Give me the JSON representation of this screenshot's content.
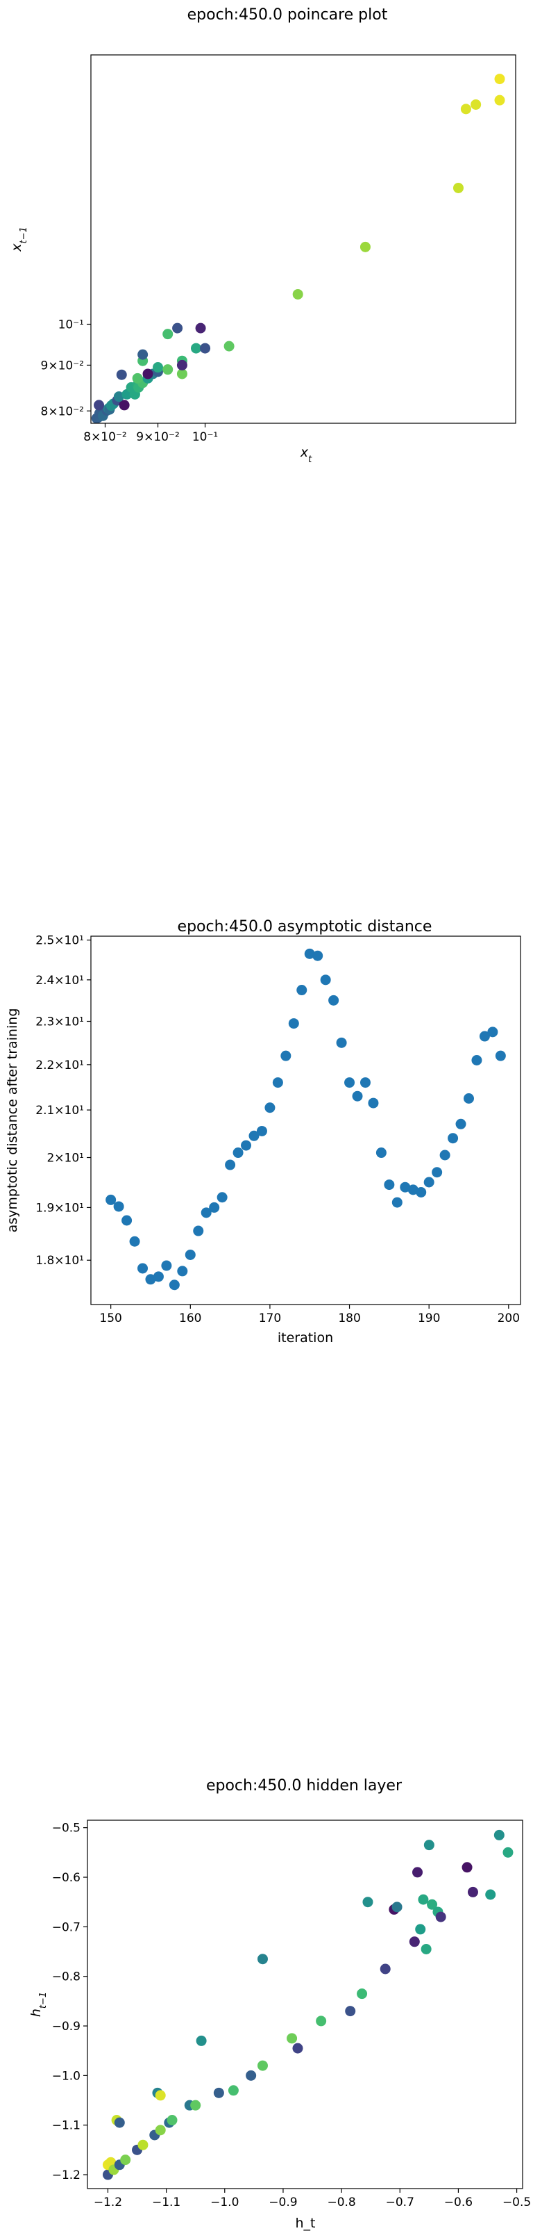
{
  "chart_data": [
    {
      "type": "scatter",
      "title": "epoch:450.0 poincare plot",
      "xlabel": "x_t",
      "ylabel": "x_{t-1}",
      "xscale": "log",
      "yscale": "log",
      "xlim": [
        0.0775,
        0.2
      ],
      "ylim": [
        0.0775,
        0.2
      ],
      "x_ticks": [
        {
          "value": 0.08,
          "label": "8×10⁻²"
        },
        {
          "value": 0.09,
          "label": "9×10⁻²"
        },
        {
          "value": 0.1,
          "label": "10⁻¹"
        }
      ],
      "y_ticks": [
        {
          "value": 0.08,
          "label": "8×10⁻²"
        },
        {
          "value": 0.09,
          "label": "9×10⁻²"
        },
        {
          "value": 0.1,
          "label": "10⁻¹"
        }
      ],
      "colormap": "viridis",
      "points": [
        {
          "x": 0.0785,
          "y": 0.0785,
          "c": 0.3
        },
        {
          "x": 0.0787,
          "y": 0.0786,
          "c": 0.3
        },
        {
          "x": 0.0789,
          "y": 0.0788,
          "c": 0.3
        },
        {
          "x": 0.0791,
          "y": 0.079,
          "c": 0.32
        },
        {
          "x": 0.0793,
          "y": 0.0792,
          "c": 0.3
        },
        {
          "x": 0.0795,
          "y": 0.0794,
          "c": 0.35
        },
        {
          "x": 0.0798,
          "y": 0.0796,
          "c": 0.3
        },
        {
          "x": 0.08,
          "y": 0.0799,
          "c": 0.4
        },
        {
          "x": 0.079,
          "y": 0.0795,
          "c": 0.3
        },
        {
          "x": 0.0796,
          "y": 0.079,
          "c": 0.35
        },
        {
          "x": 0.0803,
          "y": 0.0801,
          "c": 0.3
        },
        {
          "x": 0.0806,
          "y": 0.0805,
          "c": 0.45
        },
        {
          "x": 0.0808,
          "y": 0.0803,
          "c": 0.35
        },
        {
          "x": 0.0811,
          "y": 0.0811,
          "c": 0.5
        },
        {
          "x": 0.0815,
          "y": 0.0815,
          "c": 0.5
        },
        {
          "x": 0.0789,
          "y": 0.0812,
          "c": 0.2
        },
        {
          "x": 0.0822,
          "y": 0.0822,
          "c": 0.25
        },
        {
          "x": 0.0835,
          "y": 0.0812,
          "c": 0.05
        },
        {
          "x": 0.0825,
          "y": 0.083,
          "c": 0.45
        },
        {
          "x": 0.084,
          "y": 0.0835,
          "c": 0.55
        },
        {
          "x": 0.0855,
          "y": 0.0835,
          "c": 0.6
        },
        {
          "x": 0.0848,
          "y": 0.085,
          "c": 0.6
        },
        {
          "x": 0.086,
          "y": 0.0855,
          "c": 0.62
        },
        {
          "x": 0.0862,
          "y": 0.085,
          "c": 0.65
        },
        {
          "x": 0.087,
          "y": 0.086,
          "c": 0.7
        },
        {
          "x": 0.088,
          "y": 0.087,
          "c": 0.55
        },
        {
          "x": 0.089,
          "y": 0.088,
          "c": 0.45
        },
        {
          "x": 0.09,
          "y": 0.0885,
          "c": 0.3
        },
        {
          "x": 0.09,
          "y": 0.0895,
          "c": 0.6
        },
        {
          "x": 0.092,
          "y": 0.089,
          "c": 0.75
        },
        {
          "x": 0.088,
          "y": 0.088,
          "c": 0.05
        },
        {
          "x": 0.083,
          "y": 0.0878,
          "c": 0.25
        },
        {
          "x": 0.087,
          "y": 0.091,
          "c": 0.7
        },
        {
          "x": 0.086,
          "y": 0.087,
          "c": 0.72
        },
        {
          "x": 0.095,
          "y": 0.088,
          "c": 0.78
        },
        {
          "x": 0.095,
          "y": 0.091,
          "c": 0.68
        },
        {
          "x": 0.095,
          "y": 0.09,
          "c": 0.12
        },
        {
          "x": 0.087,
          "y": 0.0925,
          "c": 0.3
        },
        {
          "x": 0.092,
          "y": 0.0975,
          "c": 0.7
        },
        {
          "x": 0.094,
          "y": 0.099,
          "c": 0.25
        },
        {
          "x": 0.099,
          "y": 0.099,
          "c": 0.1
        },
        {
          "x": 0.098,
          "y": 0.094,
          "c": 0.6
        },
        {
          "x": 0.1,
          "y": 0.094,
          "c": 0.25
        },
        {
          "x": 0.1055,
          "y": 0.0945,
          "c": 0.75
        },
        {
          "x": 0.123,
          "y": 0.108,
          "c": 0.82
        },
        {
          "x": 0.143,
          "y": 0.122,
          "c": 0.85
        },
        {
          "x": 0.176,
          "y": 0.142,
          "c": 0.92
        },
        {
          "x": 0.179,
          "y": 0.174,
          "c": 0.95
        },
        {
          "x": 0.183,
          "y": 0.176,
          "c": 0.95
        },
        {
          "x": 0.193,
          "y": 0.178,
          "c": 0.97
        },
        {
          "x": 0.193,
          "y": 0.188,
          "c": 0.98
        }
      ]
    },
    {
      "type": "scatter",
      "title": "epoch:450.0 asymptotic distance",
      "xlabel": "iteration",
      "ylabel": "asymptotic distance after training",
      "yscale": "log",
      "xlim": [
        147.5,
        201.5
      ],
      "ylim": [
        17.2,
        25.1
      ],
      "x_ticks": [
        {
          "value": 150,
          "label": "150"
        },
        {
          "value": 160,
          "label": "160"
        },
        {
          "value": 170,
          "label": "170"
        },
        {
          "value": 180,
          "label": "180"
        },
        {
          "value": 190,
          "label": "190"
        },
        {
          "value": 200,
          "label": "200"
        }
      ],
      "y_ticks": [
        {
          "value": 18,
          "label": "1.8×10¹"
        },
        {
          "value": 19,
          "label": "1.9×10¹"
        },
        {
          "value": 20,
          "label": "2×10¹"
        },
        {
          "value": 21,
          "label": "2.1×10¹"
        },
        {
          "value": 22,
          "label": "2.2×10¹"
        },
        {
          "value": 23,
          "label": "2.3×10¹"
        },
        {
          "value": 24,
          "label": "2.4×10¹"
        },
        {
          "value": 25,
          "label": "2.5×10¹"
        }
      ],
      "color": "#1f77b4",
      "x": [
        150,
        151,
        152,
        153,
        154,
        155,
        156,
        157,
        158,
        159,
        160,
        161,
        162,
        163,
        164,
        165,
        166,
        167,
        168,
        169,
        170,
        171,
        172,
        173,
        174,
        175,
        176,
        177,
        178,
        179,
        180,
        181,
        182,
        183,
        184,
        185,
        186,
        187,
        188,
        189,
        190,
        191,
        192,
        193,
        194,
        195,
        196,
        197,
        198,
        199
      ],
      "y": [
        19.15,
        19.02,
        18.75,
        18.35,
        17.85,
        17.65,
        17.7,
        17.9,
        17.55,
        17.8,
        18.1,
        18.55,
        18.9,
        19.0,
        19.2,
        19.85,
        20.1,
        20.25,
        20.45,
        20.55,
        21.05,
        21.6,
        22.2,
        22.95,
        23.75,
        24.65,
        24.6,
        24.0,
        23.5,
        22.5,
        21.6,
        21.3,
        21.6,
        21.15,
        20.1,
        19.45,
        19.1,
        19.4,
        19.35,
        19.3,
        19.5,
        19.7,
        20.05,
        20.4,
        20.7,
        21.25,
        22.1,
        22.65,
        22.75,
        22.2
      ]
    },
    {
      "type": "scatter",
      "title": "epoch:450.0 hidden layer",
      "xlabel": "h_t",
      "ylabel": "h_{t-1}",
      "xlim": [
        -1.235,
        -0.49
      ],
      "ylim": [
        -1.228,
        -0.485
      ],
      "x_ticks": [
        {
          "value": -1.2,
          "label": "−1.2"
        },
        {
          "value": -1.1,
          "label": "−1.1"
        },
        {
          "value": -1.0,
          "label": "−1.0"
        },
        {
          "value": -0.9,
          "label": "−0.9"
        },
        {
          "value": -0.8,
          "label": "−0.8"
        },
        {
          "value": -0.7,
          "label": "−0.7"
        },
        {
          "value": -0.6,
          "label": "−0.6"
        },
        {
          "value": -0.5,
          "label": "−0.5"
        }
      ],
      "y_ticks": [
        {
          "value": -1.2,
          "label": "−1.2"
        },
        {
          "value": -1.1,
          "label": "−1.1"
        },
        {
          "value": -1.0,
          "label": "−1.0"
        },
        {
          "value": -0.9,
          "label": "−0.9"
        },
        {
          "value": -0.8,
          "label": "−0.8"
        },
        {
          "value": -0.7,
          "label": "−0.7"
        },
        {
          "value": -0.6,
          "label": "−0.6"
        },
        {
          "value": -0.5,
          "label": "−0.5"
        }
      ],
      "colormap": "viridis",
      "points": [
        {
          "x": -1.2,
          "y": -1.2,
          "c": 0.25
        },
        {
          "x": -1.2,
          "y": -1.18,
          "c": 0.97
        },
        {
          "x": -1.195,
          "y": -1.175,
          "c": 0.96
        },
        {
          "x": -1.19,
          "y": -1.19,
          "c": 0.85
        },
        {
          "x": -1.18,
          "y": -1.18,
          "c": 0.3
        },
        {
          "x": -1.17,
          "y": -1.17,
          "c": 0.8
        },
        {
          "x": -1.15,
          "y": -1.15,
          "c": 0.25
        },
        {
          "x": -1.14,
          "y": -1.14,
          "c": 0.9
        },
        {
          "x": -1.12,
          "y": -1.12,
          "c": 0.3
        },
        {
          "x": -1.11,
          "y": -1.11,
          "c": 0.82
        },
        {
          "x": -1.095,
          "y": -1.095,
          "c": 0.35
        },
        {
          "x": -1.09,
          "y": -1.09,
          "c": 0.72
        },
        {
          "x": -1.06,
          "y": -1.06,
          "c": 0.4
        },
        {
          "x": -1.05,
          "y": -1.06,
          "c": 0.75
        },
        {
          "x": -1.185,
          "y": -1.09,
          "c": 0.92
        },
        {
          "x": -1.18,
          "y": -1.095,
          "c": 0.3
        },
        {
          "x": -1.115,
          "y": -1.035,
          "c": 0.45
        },
        {
          "x": -1.11,
          "y": -1.04,
          "c": 0.95
        },
        {
          "x": -1.04,
          "y": -0.93,
          "c": 0.5
        },
        {
          "x": -1.01,
          "y": -1.035,
          "c": 0.3
        },
        {
          "x": -0.985,
          "y": -1.03,
          "c": 0.7
        },
        {
          "x": -0.955,
          "y": -1.0,
          "c": 0.3
        },
        {
          "x": -0.935,
          "y": -0.98,
          "c": 0.75
        },
        {
          "x": -0.935,
          "y": -0.765,
          "c": 0.45
        },
        {
          "x": -0.885,
          "y": -0.925,
          "c": 0.78
        },
        {
          "x": -0.875,
          "y": -0.945,
          "c": 0.2
        },
        {
          "x": -0.835,
          "y": -0.89,
          "c": 0.7
        },
        {
          "x": -0.785,
          "y": -0.87,
          "c": 0.25
        },
        {
          "x": -0.765,
          "y": -0.835,
          "c": 0.68
        },
        {
          "x": -0.755,
          "y": -0.65,
          "c": 0.5
        },
        {
          "x": -0.725,
          "y": -0.785,
          "c": 0.2
        },
        {
          "x": -0.71,
          "y": -0.665,
          "c": 0.05
        },
        {
          "x": -0.705,
          "y": -0.66,
          "c": 0.4
        },
        {
          "x": -0.675,
          "y": -0.73,
          "c": 0.1
        },
        {
          "x": -0.67,
          "y": -0.59,
          "c": 0.08
        },
        {
          "x": -0.665,
          "y": -0.705,
          "c": 0.55
        },
        {
          "x": -0.66,
          "y": -0.645,
          "c": 0.6
        },
        {
          "x": -0.655,
          "y": -0.745,
          "c": 0.6
        },
        {
          "x": -0.65,
          "y": -0.535,
          "c": 0.5
        },
        {
          "x": -0.645,
          "y": -0.655,
          "c": 0.62
        },
        {
          "x": -0.635,
          "y": -0.67,
          "c": 0.6
        },
        {
          "x": -0.63,
          "y": -0.68,
          "c": 0.15
        },
        {
          "x": -0.585,
          "y": -0.58,
          "c": 0.05
        },
        {
          "x": -0.575,
          "y": -0.63,
          "c": 0.1
        },
        {
          "x": -0.545,
          "y": -0.635,
          "c": 0.55
        },
        {
          "x": -0.53,
          "y": -0.515,
          "c": 0.5
        },
        {
          "x": -0.515,
          "y": -0.55,
          "c": 0.6
        }
      ]
    }
  ]
}
